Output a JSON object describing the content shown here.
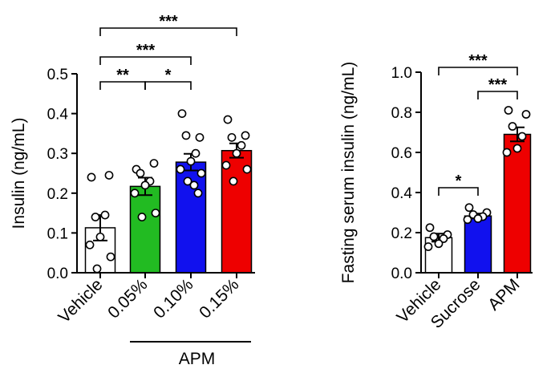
{
  "chart_data": [
    {
      "type": "bar",
      "ylabel": "Insulin (ng/mL)",
      "ylim": [
        0,
        0.5
      ],
      "yticks": [
        "0.0",
        "0.1",
        "0.2",
        "0.3",
        "0.4",
        "0.5"
      ],
      "categories": [
        "Vehicle",
        "0.05%",
        "0.10%",
        "0.15%"
      ],
      "group_label": "APM",
      "bars": [
        {
          "category": "Vehicle",
          "mean": 0.113,
          "sem": 0.032,
          "color": "#ffffff",
          "points": [
            0.24,
            0.245,
            0.14,
            0.145,
            0.09,
            0.07,
            0.04,
            0.01
          ]
        },
        {
          "category": "0.05%",
          "mean": 0.217,
          "sem": 0.022,
          "color": "#22bb22",
          "points": [
            0.26,
            0.275,
            0.25,
            0.23,
            0.22,
            0.2,
            0.15,
            0.14
          ]
        },
        {
          "category": "0.10%",
          "mean": 0.278,
          "sem": 0.021,
          "color": "#1111ee",
          "points": [
            0.4,
            0.34,
            0.345,
            0.3,
            0.28,
            0.26,
            0.25,
            0.23,
            0.22,
            0.2
          ]
        },
        {
          "category": "0.15%",
          "mean": 0.307,
          "sem": 0.018,
          "color": "#ee0000",
          "points": [
            0.385,
            0.345,
            0.34,
            0.32,
            0.3,
            0.27,
            0.26,
            0.23
          ]
        }
      ],
      "significance": [
        {
          "from": 0,
          "to": 1,
          "label": "**"
        },
        {
          "from": 1,
          "to": 2,
          "label": "*"
        },
        {
          "from": 0,
          "to": 2,
          "label": "***"
        },
        {
          "from": 0,
          "to": 3,
          "label": "***"
        }
      ]
    },
    {
      "type": "bar",
      "ylabel": "Fasting serum insulin (ng/mL)",
      "ylim": [
        0,
        1.0
      ],
      "yticks": [
        "0.0",
        "0.2",
        "0.4",
        "0.6",
        "0.8",
        "1.0"
      ],
      "categories": [
        "Vehicle",
        "Sucrose",
        "APM"
      ],
      "bars": [
        {
          "category": "Vehicle",
          "mean": 0.175,
          "sem": 0.02,
          "color": "#ffffff",
          "points": [
            0.225,
            0.19,
            0.18,
            0.17,
            0.145,
            0.13
          ]
        },
        {
          "category": "Sucrose",
          "mean": 0.283,
          "sem": 0.012,
          "color": "#1111ee",
          "points": [
            0.325,
            0.3,
            0.29,
            0.28,
            0.27,
            0.265
          ]
        },
        {
          "category": "APM",
          "mean": 0.69,
          "sem": 0.035,
          "color": "#ee0000",
          "points": [
            0.81,
            0.79,
            0.73,
            0.68,
            0.62,
            0.6
          ]
        }
      ],
      "significance": [
        {
          "from": 0,
          "to": 1,
          "label": "*"
        },
        {
          "from": 1,
          "to": 2,
          "label": "***"
        },
        {
          "from": 0,
          "to": 2,
          "label": "***"
        }
      ]
    }
  ]
}
